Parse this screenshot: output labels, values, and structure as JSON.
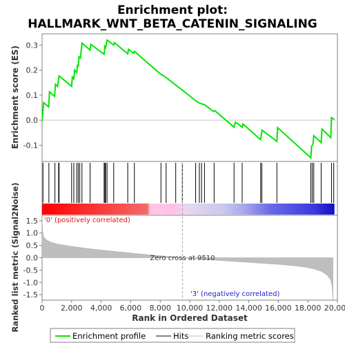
{
  "chart_data": {
    "type": "line",
    "title_line1": "Enrichment plot:",
    "title_line2": "HALLMARK_WNT_BETA_CATENIN_SIGNALING",
    "colors": {
      "enrichment": "#00e600",
      "hits": "#000000",
      "metric_fill": "#bebebe",
      "positive_label": "#e01010",
      "negative_label": "#2020d0",
      "zero_cross_line": "#a0a0a0"
    },
    "top_panel": {
      "ylabel": "Enrichment score (ES)",
      "ylim": [
        -0.165,
        0.345
      ],
      "yticks": [
        -0.1,
        0.0,
        0.1,
        0.2,
        0.3
      ],
      "ytick_labels": [
        "-0.1",
        "0.0",
        "0.1",
        "0.2",
        "0.3"
      ],
      "series": [
        {
          "points": [
            [
              0,
              -0.005
            ],
            [
              100,
              0.07
            ],
            [
              450,
              0.053
            ],
            [
              500,
              0.113
            ],
            [
              850,
              0.095
            ],
            [
              900,
              0.143
            ],
            [
              1050,
              0.135
            ],
            [
              1150,
              0.177
            ],
            [
              2000,
              0.135
            ],
            [
              2050,
              0.172
            ],
            [
              2150,
              0.165
            ],
            [
              2200,
              0.2
            ],
            [
              2350,
              0.19
            ],
            [
              2400,
              0.222
            ],
            [
              2450,
              0.214
            ],
            [
              2500,
              0.253
            ],
            [
              2600,
              0.248
            ],
            [
              2700,
              0.308
            ],
            [
              3250,
              0.28
            ],
            [
              3300,
              0.303
            ],
            [
              4200,
              0.263
            ],
            [
              4250,
              0.295
            ],
            [
              4300,
              0.29
            ],
            [
              4400,
              0.32
            ],
            [
              4850,
              0.3
            ],
            [
              4900,
              0.31
            ],
            [
              5800,
              0.265
            ],
            [
              5850,
              0.283
            ],
            [
              6200,
              0.267
            ],
            [
              6250,
              0.275
            ],
            [
              8000,
              0.185
            ],
            [
              8150,
              0.18
            ],
            [
              8400,
              0.17
            ],
            [
              9500,
              0.12
            ],
            [
              10400,
              0.078
            ],
            [
              10600,
              0.07
            ],
            [
              10800,
              0.065
            ],
            [
              11000,
              0.062
            ],
            [
              11600,
              0.035
            ],
            [
              11700,
              0.038
            ],
            [
              13000,
              -0.028
            ],
            [
              13100,
              -0.008
            ],
            [
              13550,
              -0.028
            ],
            [
              13600,
              -0.015
            ],
            [
              14800,
              -0.078
            ],
            [
              14850,
              -0.058
            ],
            [
              14900,
              -0.04
            ],
            [
              15900,
              -0.085
            ],
            [
              15950,
              -0.03
            ],
            [
              18200,
              -0.15
            ],
            [
              18250,
              -0.105
            ],
            [
              18350,
              -0.095
            ],
            [
              18400,
              -0.062
            ],
            [
              18900,
              -0.09
            ],
            [
              18950,
              -0.035
            ],
            [
              19550,
              -0.07
            ],
            [
              19600,
              0.01
            ],
            [
              19800,
              0.003
            ]
          ]
        }
      ]
    },
    "hits": [
      60,
      460,
      870,
      1120,
      1150,
      2000,
      2150,
      2350,
      2450,
      2550,
      2700,
      3250,
      4200,
      4260,
      4300,
      4400,
      4850,
      5800,
      6250,
      8050,
      8400,
      9050,
      9500,
      10400,
      10650,
      10800,
      11000,
      11650,
      13000,
      13550,
      14800,
      14880,
      15900,
      18200,
      18300,
      18400,
      18900,
      19600,
      19750
    ],
    "bottom_panel": {
      "ylabel": "Ranked list metric (Signal2Noise)",
      "ylim": [
        -1.72,
        1.72
      ],
      "yticks": [
        -1.5,
        -1.0,
        -0.5,
        0.0,
        0.5,
        1.0,
        1.5
      ],
      "ytick_labels": [
        "-1.5",
        "-1.0",
        "-0.5",
        "0.0",
        "0.5",
        "1.0",
        "1.5"
      ],
      "metric_curve": [
        [
          0,
          1.65
        ],
        [
          30,
          1.1
        ],
        [
          100,
          0.85
        ],
        [
          300,
          0.72
        ],
        [
          600,
          0.63
        ],
        [
          1000,
          0.56
        ],
        [
          2000,
          0.46
        ],
        [
          3000,
          0.38
        ],
        [
          4000,
          0.31
        ],
        [
          5000,
          0.25
        ],
        [
          6000,
          0.19
        ],
        [
          7000,
          0.13
        ],
        [
          8000,
          0.08
        ],
        [
          9000,
          0.03
        ],
        [
          9510,
          0.0
        ],
        [
          10000,
          -0.03
        ],
        [
          11000,
          -0.07
        ],
        [
          12000,
          -0.11
        ],
        [
          13000,
          -0.15
        ],
        [
          14000,
          -0.19
        ],
        [
          15000,
          -0.23
        ],
        [
          16000,
          -0.27
        ],
        [
          17000,
          -0.32
        ],
        [
          17800,
          -0.38
        ],
        [
          18400,
          -0.45
        ],
        [
          18900,
          -0.55
        ],
        [
          19300,
          -0.7
        ],
        [
          19550,
          -0.9
        ],
        [
          19650,
          -1.2
        ],
        [
          19700,
          -1.72
        ]
      ],
      "positive_text": "'0' (positively correlated)",
      "negative_text": "'3' (negatively correlated)",
      "zero_cross_text": "Zero cross at 9510",
      "zero_cross_value": 9510
    },
    "xlabel": "Rank in Ordered Dataset",
    "xlim": [
      0,
      20000
    ],
    "xmax_rank": 19800,
    "xticks": [
      0,
      2000,
      4000,
      6000,
      8000,
      10000,
      12000,
      14000,
      16000,
      18000,
      20000
    ],
    "xtick_labels": [
      "0",
      "2,000",
      "4,000",
      "6,000",
      "8,000",
      "10,000",
      "12,000",
      "14,000",
      "16,000",
      "18,000",
      "20,000"
    ],
    "heatmap_stops": [
      [
        0.0,
        "#ff0000"
      ],
      [
        0.36,
        "#f46a6a"
      ],
      [
        0.37,
        "#ffc8e4"
      ],
      [
        0.45,
        "#ffc0e8"
      ],
      [
        0.49,
        "#e8d8f4"
      ],
      [
        0.62,
        "#c8c8f0"
      ],
      [
        0.69,
        "#a8a8ec"
      ],
      [
        0.78,
        "#6a6ae6"
      ],
      [
        0.93,
        "#3a3ae0"
      ],
      [
        1.0,
        "#1010c8"
      ]
    ],
    "legend": {
      "enrichment_label": "Enrichment profile",
      "hits_label": "Hits",
      "metric_label": "Ranking metric scores"
    }
  }
}
